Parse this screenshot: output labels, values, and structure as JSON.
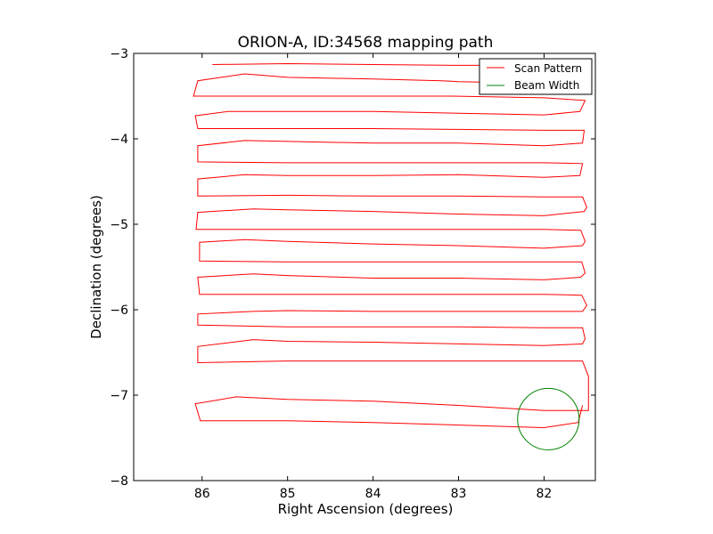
{
  "chart_data": {
    "type": "line",
    "title": "ORION-A, ID:34568 mapping path",
    "xlabel": "Right Ascension (degrees)",
    "ylabel": "Declination (degrees)",
    "xlim": [
      86.8,
      81.4
    ],
    "ylim": [
      -8.0,
      -3.0
    ],
    "x_inverted": true,
    "xticks": [
      86,
      85,
      84,
      83,
      82
    ],
    "xtick_labels": [
      "86",
      "85",
      "84",
      "83",
      "82"
    ],
    "yticks": [
      -3,
      -4,
      -5,
      -6,
      -7,
      -8
    ],
    "ytick_labels": [
      "−3",
      "−4",
      "−5",
      "−6",
      "−7",
      "−8"
    ],
    "grid": false,
    "legend_position": "top-right",
    "series": [
      {
        "name": "Scan Pattern",
        "color": "#ff0000",
        "type": "line",
        "x": [
          85.88,
          85.0,
          84.0,
          83.0,
          82.2,
          81.53,
          81.5,
          82.0,
          83.0,
          83.2,
          84.0,
          85.0,
          85.5,
          86.05,
          86.1,
          85.0,
          84.0,
          83.1,
          82.0,
          81.52,
          81.58,
          82.0,
          83.0,
          84.0,
          85.0,
          85.7,
          86.08,
          86.05,
          85.0,
          84.0,
          83.0,
          82.0,
          81.53,
          81.55,
          82.0,
          83.0,
          84.0,
          85.0,
          85.5,
          86.05,
          86.05,
          85.0,
          84.0,
          83.0,
          82.0,
          81.55,
          81.58,
          82.0,
          83.0,
          84.0,
          85.0,
          85.5,
          86.05,
          86.05,
          85.0,
          84.0,
          83.0,
          82.0,
          81.55,
          81.5,
          81.53,
          82.0,
          83.0,
          84.0,
          85.0,
          85.4,
          86.05,
          86.07,
          85.0,
          84.0,
          83.0,
          82.0,
          81.57,
          81.52,
          81.55,
          82.0,
          83.0,
          84.0,
          85.0,
          85.5,
          86.03,
          86.03,
          85.0,
          84.0,
          83.0,
          82.0,
          81.56,
          81.52,
          81.57,
          82.0,
          83.0,
          84.0,
          85.0,
          85.4,
          86.05,
          86.03,
          85.0,
          84.0,
          83.0,
          82.0,
          81.56,
          81.5,
          81.55,
          82.0,
          83.0,
          84.0,
          85.0,
          85.4,
          86.05,
          86.05,
          85.0,
          84.0,
          83.0,
          82.0,
          81.55,
          81.52,
          81.55,
          82.0,
          83.0,
          84.0,
          85.0,
          85.4,
          86.05,
          86.05,
          85.0,
          84.0,
          83.0,
          82.0,
          81.55,
          81.48,
          81.48,
          82.0,
          83.0,
          84.0,
          85.0,
          85.6,
          86.08,
          86.02,
          85.0,
          84.0,
          83.0,
          82.0,
          81.6,
          81.55
        ],
        "y": [
          -3.13,
          -3.12,
          -3.13,
          -3.14,
          -3.14,
          -3.18,
          -3.32,
          -3.35,
          -3.33,
          -3.32,
          -3.3,
          -3.28,
          -3.24,
          -3.32,
          -3.5,
          -3.5,
          -3.5,
          -3.5,
          -3.52,
          -3.55,
          -3.68,
          -3.72,
          -3.7,
          -3.68,
          -3.68,
          -3.68,
          -3.73,
          -3.88,
          -3.88,
          -3.88,
          -3.89,
          -3.9,
          -3.9,
          -4.05,
          -4.08,
          -4.05,
          -4.05,
          -4.03,
          -4.02,
          -4.08,
          -4.27,
          -4.28,
          -4.28,
          -4.28,
          -4.28,
          -4.29,
          -4.43,
          -4.45,
          -4.42,
          -4.43,
          -4.43,
          -4.42,
          -4.47,
          -4.67,
          -4.66,
          -4.67,
          -4.67,
          -4.68,
          -4.68,
          -4.8,
          -4.85,
          -4.9,
          -4.88,
          -4.85,
          -4.83,
          -4.82,
          -4.86,
          -5.06,
          -5.06,
          -5.06,
          -5.06,
          -5.06,
          -5.07,
          -5.2,
          -5.25,
          -5.28,
          -5.25,
          -5.23,
          -5.2,
          -5.18,
          -5.21,
          -5.43,
          -5.44,
          -5.44,
          -5.44,
          -5.44,
          -5.44,
          -5.57,
          -5.62,
          -5.65,
          -5.63,
          -5.63,
          -5.6,
          -5.58,
          -5.62,
          -5.82,
          -5.82,
          -5.82,
          -5.82,
          -5.82,
          -5.83,
          -5.95,
          -6.02,
          -6.02,
          -6.02,
          -6.02,
          -6.01,
          -6.02,
          -6.05,
          -6.18,
          -6.2,
          -6.2,
          -6.2,
          -6.21,
          -6.21,
          -6.34,
          -6.4,
          -6.42,
          -6.4,
          -6.38,
          -6.37,
          -6.35,
          -6.43,
          -6.62,
          -6.6,
          -6.6,
          -6.6,
          -6.6,
          -6.6,
          -6.78,
          -7.18,
          -7.18,
          -7.12,
          -7.07,
          -7.05,
          -7.02,
          -7.1,
          -7.3,
          -7.3,
          -7.32,
          -7.35,
          -7.38,
          -7.32,
          -7.12
        ]
      },
      {
        "name": "Beam Width",
        "color": "#008000",
        "type": "circle",
        "center_x": 81.95,
        "center_y": -7.28,
        "radius": 0.36
      }
    ]
  }
}
